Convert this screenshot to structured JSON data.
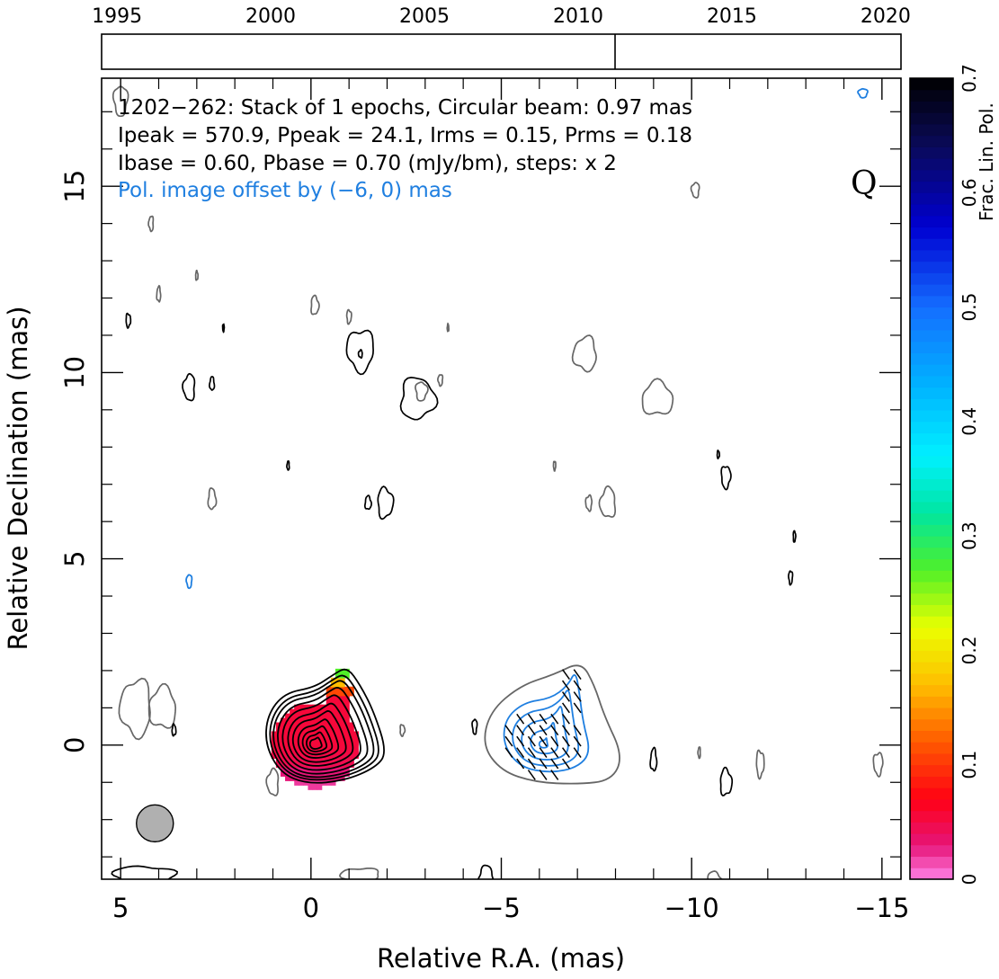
{
  "chart_data": {
    "type": "contour",
    "source": "1202-262",
    "annotations": {
      "line1": "1202−262: Stack of 1 epochs, Circular beam: 0.97 mas",
      "line2": "Ipeak = 570.9, Ppeak = 24.1, Irms = 0.15, Prms = 0.18",
      "line3": "Ibase = 0.60, Pbase = 0.70 (mJy/bm), steps: x 2",
      "line4": "Pol. image offset by (−6, 0) mas",
      "stokes": "Q"
    },
    "stats": {
      "epochs": 1,
      "beam_mas": 0.97,
      "ipeak": 570.9,
      "ppeak": 24.1,
      "irms": 0.15,
      "prms": 0.18,
      "ibase": 0.6,
      "pbase": 0.7,
      "pol_offset_mas": [
        -6,
        0
      ]
    },
    "xlabel": "Relative R.A. (mas)",
    "ylabel": "Relative Declination (mas)",
    "xlim": [
      5.5,
      -15.5
    ],
    "ylim": [
      -3.6,
      17.9
    ],
    "xticks": [
      5,
      0,
      -5,
      -10,
      -15
    ],
    "xtick_labels": [
      "5",
      "0",
      "−5",
      "−10",
      "−15"
    ],
    "yticks": [
      0,
      5,
      10,
      15
    ],
    "ytick_labels": [
      "0",
      "5",
      "10",
      "15"
    ],
    "timeline": {
      "xlim": [
        1994.5,
        2020.5
      ],
      "ticks": [
        1995,
        2000,
        2005,
        2010,
        2015,
        2020
      ],
      "tick_labels": [
        "1995",
        "2000",
        "2005",
        "2010",
        "2015",
        "2020"
      ],
      "epoch_markers": [
        2011.2
      ]
    },
    "colorbar": {
      "label": "Frac. Lin. Pol.",
      "range": [
        0,
        0.7
      ],
      "ticks": [
        0,
        0.1,
        0.2,
        0.3,
        0.4,
        0.5,
        0.6,
        0.7
      ],
      "tick_labels": [
        "0",
        "0.1",
        "0.2",
        "0.3",
        "0.4",
        "0.5",
        "0.6",
        "0.7"
      ]
    },
    "core": {
      "x": -0.1,
      "y": 0.0
    },
    "beam": {
      "x": 4.1,
      "y": -2.1,
      "diameter_mas": 0.97
    },
    "colors": {
      "intensity_contours": "#000000",
      "intensity_noise_contours": "#666666",
      "pol_contours": "#1f7fe0",
      "pol_text": "#1f7fe0",
      "beam": "#b0b0b0"
    }
  }
}
